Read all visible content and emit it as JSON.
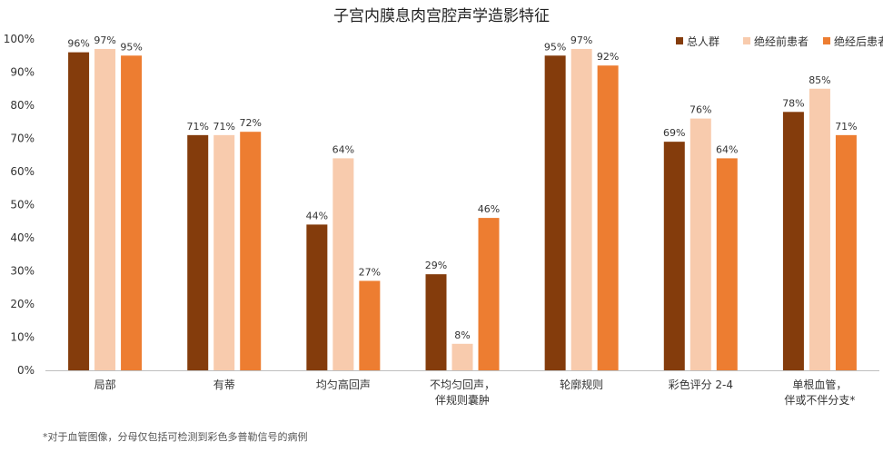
{
  "chart_data": {
    "type": "bar",
    "title": "子宫内膜息肉宫腔声学造影特征",
    "footnote": "*对于血管图像，分母仅包括可检测到彩色多普勒信号的病例",
    "xlabel": "",
    "ylabel": "",
    "ylim": [
      0,
      100
    ],
    "yticks": [
      "0%",
      "10%",
      "20%",
      "30%",
      "40%",
      "50%",
      "60%",
      "70%",
      "80%",
      "90%",
      "100%"
    ],
    "grid": false,
    "legend_position": "top-right",
    "categories": [
      [
        "局部"
      ],
      [
        "有蒂"
      ],
      [
        "均匀高回声"
      ],
      [
        "不均匀回声，",
        "伴规则囊肿"
      ],
      [
        "轮廓规则"
      ],
      [
        "彩色评分 2-4"
      ],
      [
        "单根血管，",
        "伴或不伴分支*"
      ]
    ],
    "series": [
      {
        "name": "总人群",
        "color": "#843C0C",
        "values": [
          96,
          71,
          44,
          29,
          95,
          69,
          78
        ],
        "labels": [
          "96%",
          "71%",
          "44%",
          "29%",
          "95%",
          "69%",
          "78%"
        ]
      },
      {
        "name": "绝经前患者",
        "color": "#F8CBAD",
        "values": [
          97,
          71,
          64,
          8,
          97,
          76,
          85
        ],
        "labels": [
          "97%",
          "71%",
          "64%",
          "8%",
          "97%",
          "76%",
          "85%"
        ]
      },
      {
        "name": "绝经后患者",
        "color": "#ED7D31",
        "values": [
          95,
          72,
          27,
          46,
          92,
          64,
          71
        ],
        "labels": [
          "95%",
          "72%",
          "27%",
          "46%",
          "92%",
          "64%",
          "71%"
        ]
      }
    ]
  }
}
